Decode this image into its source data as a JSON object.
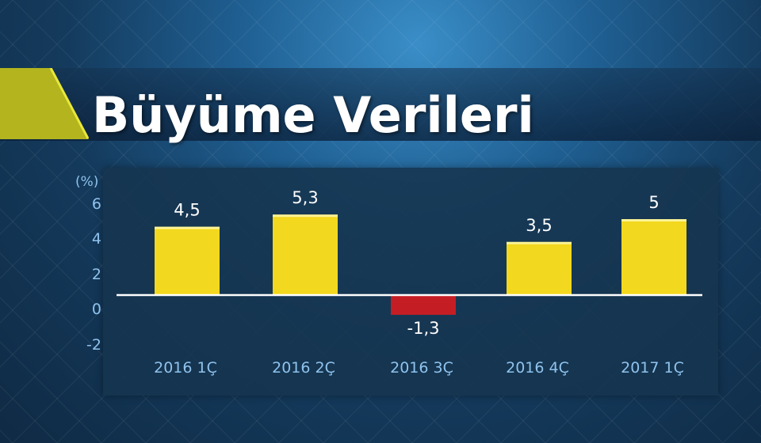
{
  "title": "Büyüme Verileri",
  "colors": {
    "positive_bar": "#f2d81e",
    "negative_bar": "#c41e24",
    "axis_text": "#8fc3ee",
    "value_text": "#ffffff",
    "title_accent": "#b4b41e"
  },
  "chart_data": {
    "type": "bar",
    "unit_label": "(%)",
    "categories": [
      "2016 1Ç",
      "2016 2Ç",
      "2016 3Ç",
      "2016 4Ç",
      "2017 1Ç"
    ],
    "values": [
      4.5,
      5.3,
      -1.3,
      3.5,
      5
    ],
    "value_labels": [
      "4,5",
      "5,3",
      "-1,3",
      "3,5",
      "5"
    ],
    "y_ticks": [
      6,
      4,
      2,
      0,
      -2
    ],
    "y_tick_labels": [
      "6",
      "4",
      "2",
      "0",
      "-2"
    ],
    "ylim": [
      -2,
      6
    ],
    "grid": false,
    "legend": "none"
  }
}
